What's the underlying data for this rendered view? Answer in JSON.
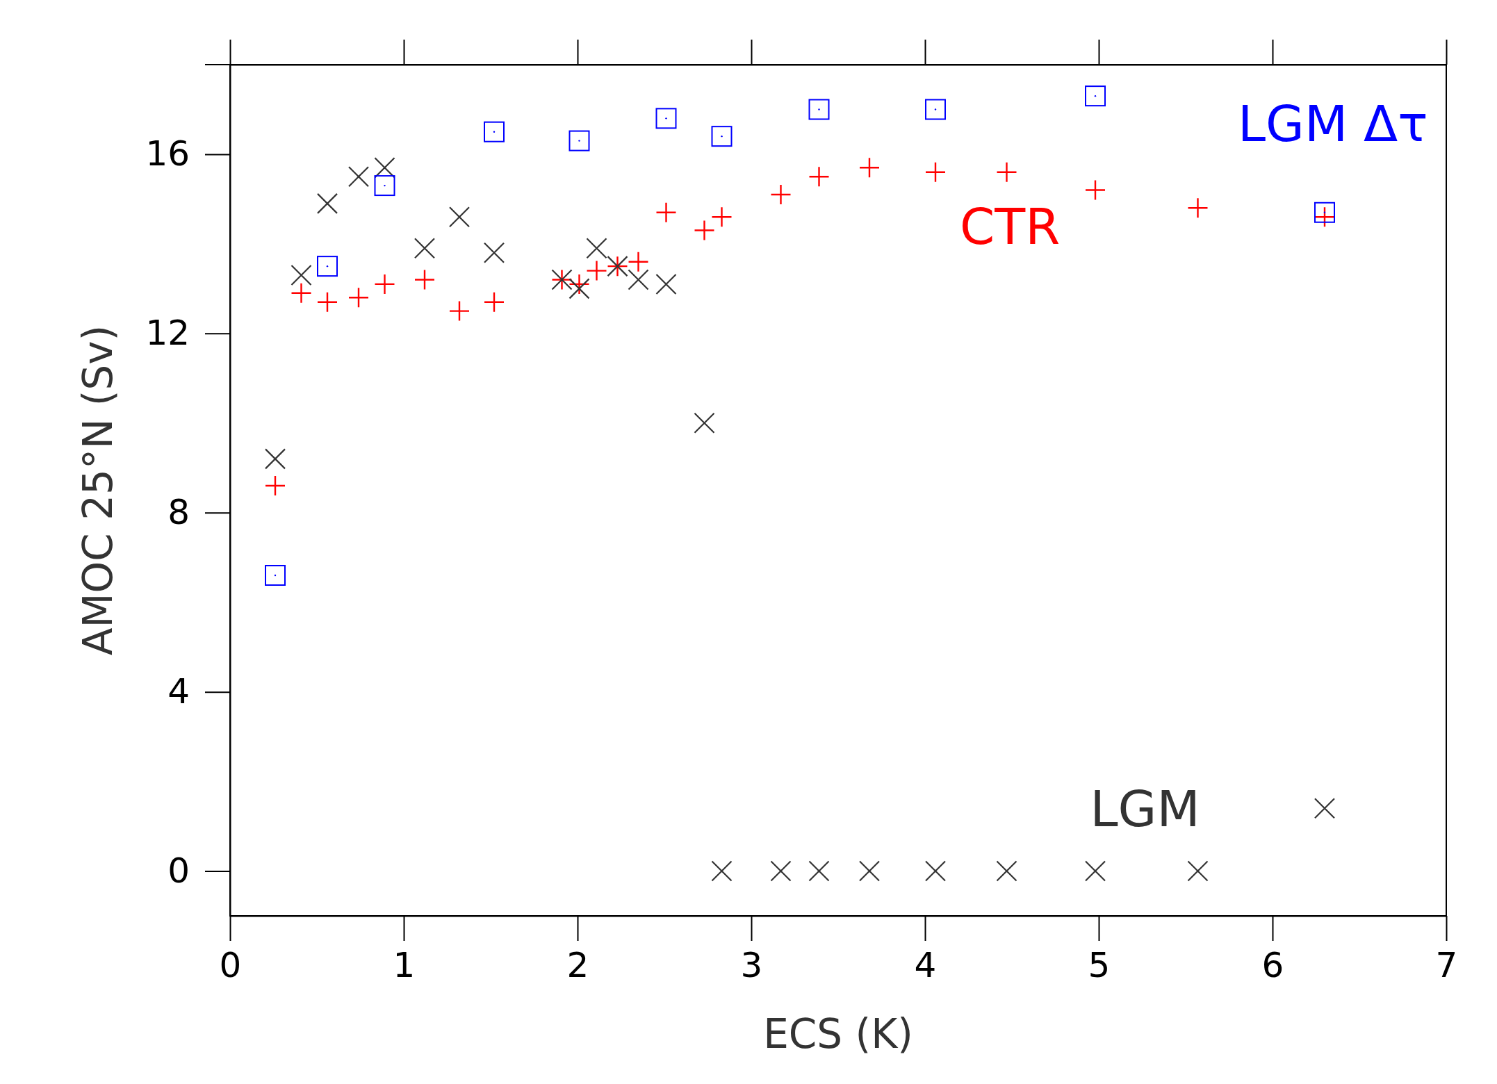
{
  "chart_data": {
    "type": "scatter",
    "xlabel": "ECS (K)",
    "ylabel": "AMOC 25°N (Sv)",
    "xlim": [
      0,
      7
    ],
    "ylim": [
      -1,
      18
    ],
    "xticks": [
      0,
      1,
      2,
      3,
      4,
      5,
      6,
      7
    ],
    "yticks": [
      0,
      4,
      8,
      12,
      16
    ],
    "grid": false,
    "legend": false,
    "series": [
      {
        "name": "CTR",
        "color": "#ff0000",
        "marker": "cross",
        "x": [
          0.26,
          0.41,
          0.56,
          0.74,
          0.89,
          1.12,
          1.32,
          1.52,
          1.91,
          2.01,
          2.11,
          2.23,
          2.35,
          2.51,
          2.73,
          2.83,
          3.17,
          3.39,
          3.68,
          4.06,
          4.47,
          4.98,
          5.57,
          6.3
        ],
        "values": [
          8.6,
          12.9,
          12.7,
          12.8,
          13.1,
          13.2,
          12.5,
          12.7,
          13.2,
          13.1,
          13.4,
          13.5,
          13.6,
          14.7,
          14.3,
          14.6,
          15.1,
          15.5,
          15.7,
          15.6,
          15.6,
          15.2,
          14.8,
          14.6
        ]
      },
      {
        "name": "LGM",
        "color": "#333333",
        "marker": "x",
        "x": [
          0.26,
          0.41,
          0.56,
          0.74,
          0.89,
          1.12,
          1.32,
          1.52,
          1.91,
          2.01,
          2.11,
          2.23,
          2.35,
          2.51,
          2.73,
          2.83,
          3.17,
          3.39,
          3.68,
          4.06,
          4.47,
          4.98,
          5.57,
          6.3
        ],
        "values": [
          9.2,
          13.3,
          14.9,
          15.5,
          15.7,
          13.9,
          14.6,
          13.8,
          13.2,
          13.0,
          13.9,
          13.5,
          13.2,
          13.1,
          10.0,
          0,
          0,
          0,
          0,
          0,
          0,
          0,
          0,
          1.4
        ]
      },
      {
        "name": "LGM Δτ",
        "color": "#0000ff",
        "marker": "square",
        "x": [
          0.26,
          0.56,
          0.89,
          1.52,
          2.01,
          2.51,
          2.83,
          3.39,
          4.06,
          4.98,
          6.3
        ],
        "values": [
          6.6,
          13.5,
          15.3,
          16.5,
          16.3,
          16.8,
          16.4,
          17.0,
          17.0,
          17.3,
          14.7
        ]
      }
    ]
  }
}
